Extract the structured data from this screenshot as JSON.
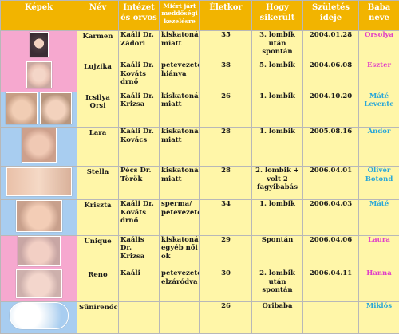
{
  "headers": {
    "photos": "Képek",
    "name": "Név",
    "clinic": "Intézet és orvos",
    "reason": "Miért járt meddőségi kezelésre",
    "age": "Életkor",
    "method": "Hogy sikerült",
    "birthdate": "Születés ideje",
    "baby": "Baba neve"
  },
  "rows": [
    {
      "name": "Karmen",
      "clinic": "Kaáli Dr. Zádori",
      "reason": "kiskatonák miatt",
      "age": "35",
      "method": "3. lombik után spontán",
      "birthdate": "2004.01.28",
      "baby": "Orsolya",
      "baby_gender": "girl",
      "bg": "pink"
    },
    {
      "name": "Lujzika",
      "clinic": "Kaáli Dr. Kováts drnő",
      "reason": "petevezeték hiánya",
      "age": "38",
      "method": "5. lombik",
      "birthdate": "2004.06.08",
      "baby": "Eszter",
      "baby_gender": "girl",
      "bg": "pink"
    },
    {
      "name": "Icsilya Orsi",
      "clinic": "Kaáli Dr. Krizsa",
      "reason": "kiskatonák miatt",
      "age": "26",
      "method": "1. lombik",
      "birthdate": "2004.10.20",
      "baby": "Máté Levente",
      "baby_gender": "boy",
      "bg": "blue"
    },
    {
      "name": "Lara",
      "clinic": "Kaáli Dr. Kovács",
      "reason": "kiskatonák miatt",
      "age": "28",
      "method": "1. lombik",
      "birthdate": "2005.08.16",
      "baby": "Andor",
      "baby_gender": "boy",
      "bg": "blue"
    },
    {
      "name": "Stella",
      "clinic": "Pécs Dr. Török",
      "reason": "kiskatonák miatt",
      "age": "28",
      "method": "2. lombik + volt 2 fagyibabás",
      "birthdate": "2006.04.01",
      "baby": "Olivér Botond",
      "baby_gender": "boy",
      "bg": "blue"
    },
    {
      "name": "Kriszta",
      "clinic": "Kaáli Dr. Kováts drnő",
      "reason": "sperma/ petevezető",
      "age": "34",
      "method": "1. lombik",
      "birthdate": "2006.04.03",
      "baby": "Máté",
      "baby_gender": "boy",
      "bg": "blue"
    },
    {
      "name": "Unique",
      "clinic": "Kaális Dr. Krizsa",
      "reason": "kiskatonák egyéb női ok",
      "age": "29",
      "method": "Spontán",
      "birthdate": "2006.04.06",
      "baby": "Laura",
      "baby_gender": "girl",
      "bg": "pink"
    },
    {
      "name": "Reno",
      "clinic": "Kaáli",
      "reason": "petevezeték elzáródva",
      "age": "30",
      "method": "2. lombik után spontán",
      "birthdate": "2006.04.11",
      "baby": "Hanna",
      "baby_gender": "girl",
      "bg": "pink"
    },
    {
      "name": "Sünirenóca",
      "clinic": "",
      "reason": "",
      "age": "26",
      "method": "Őribaba",
      "birthdate": "",
      "baby": "Miklós",
      "baby_gender": "boy",
      "bg": "blue"
    }
  ]
}
